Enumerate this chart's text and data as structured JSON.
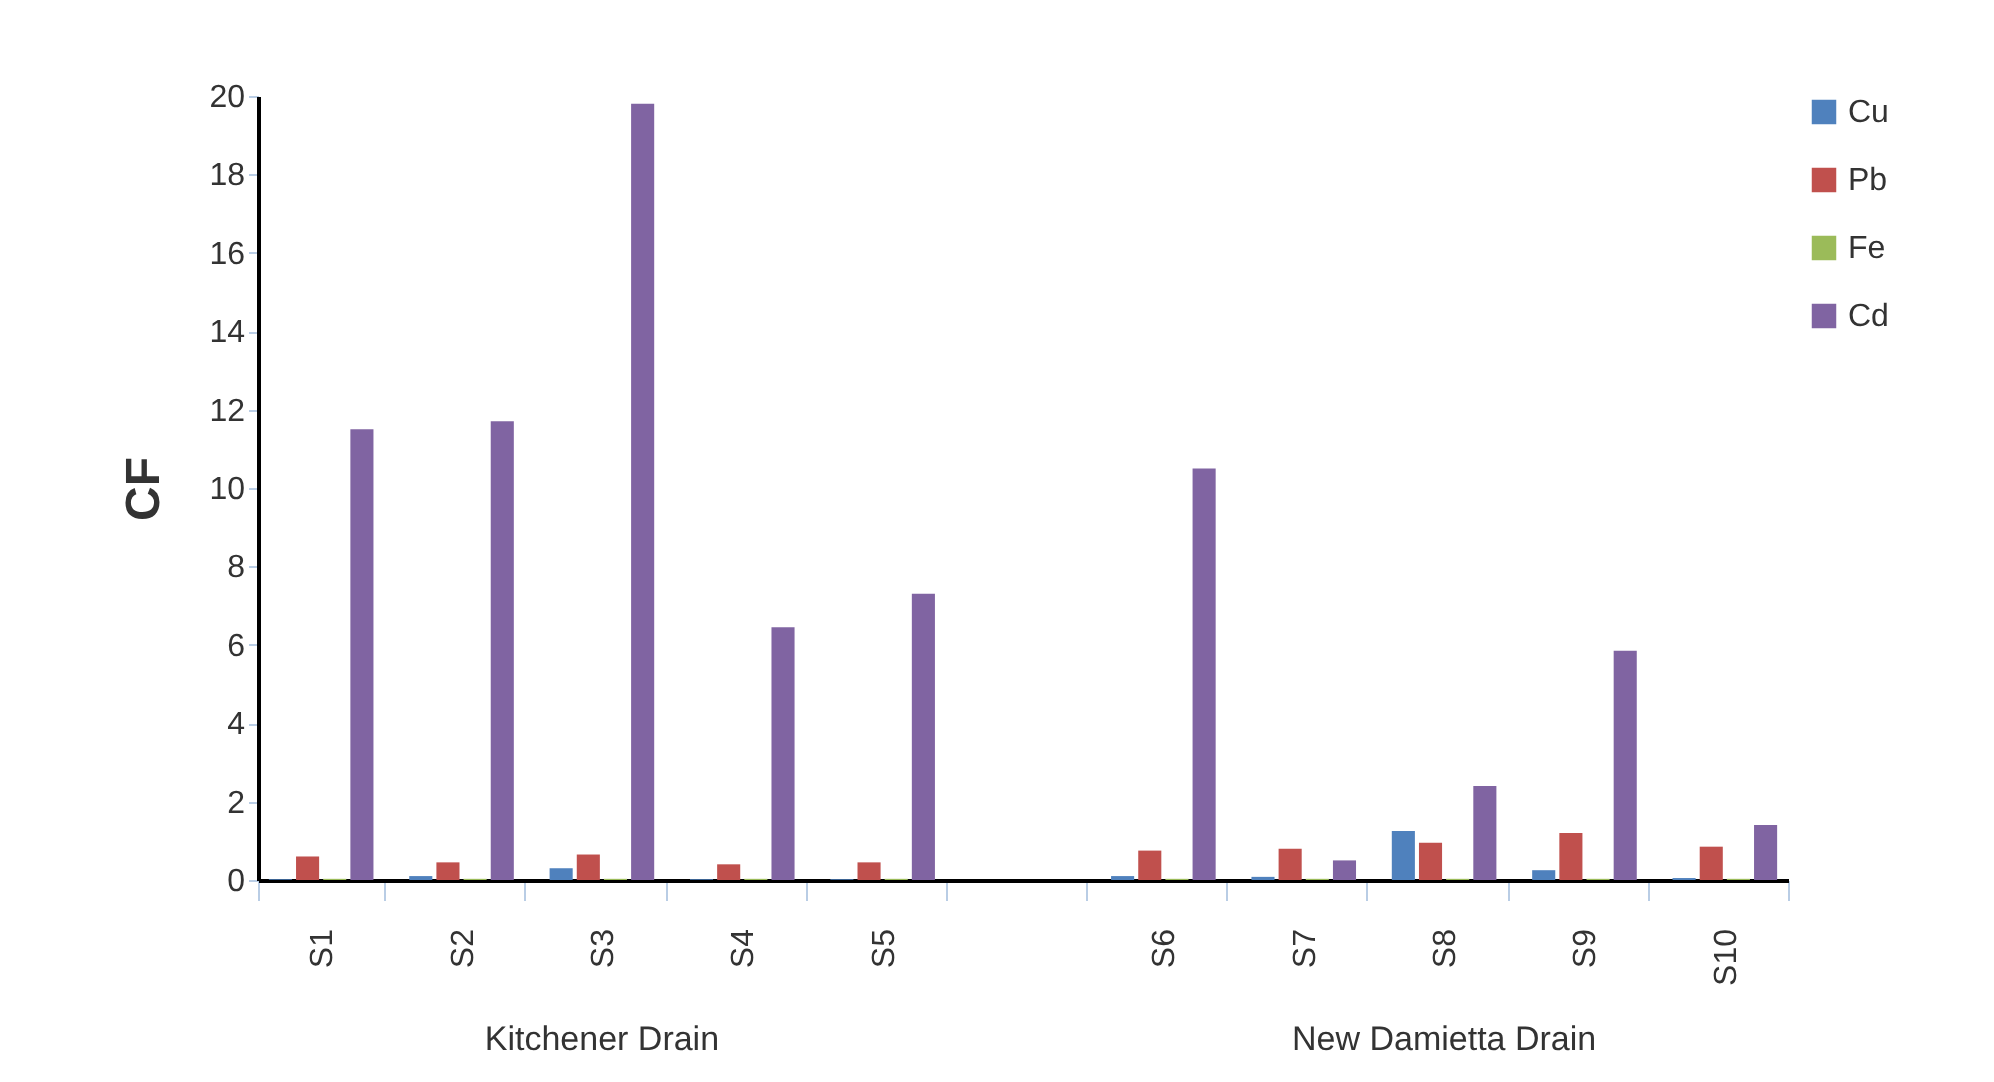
{
  "chart_data": {
    "type": "bar",
    "ylabel": "CF",
    "categories": [
      "S1",
      "S2",
      "S3",
      "S4",
      "S5",
      null,
      "S6",
      "S7",
      "S8",
      "S9",
      "S10"
    ],
    "series": [
      {
        "name": "Cu",
        "color": "#4f81bd",
        "values": [
          0.02,
          0.1,
          0.3,
          0.02,
          0.02,
          null,
          0.1,
          0.08,
          1.25,
          0.25,
          0.05
        ]
      },
      {
        "name": "Pb",
        "color": "#c0504d",
        "values": [
          0.6,
          0.45,
          0.65,
          0.4,
          0.45,
          null,
          0.75,
          0.8,
          0.95,
          1.2,
          0.85
        ]
      },
      {
        "name": "Fe",
        "color": "#9bbb59",
        "values": [
          0.03,
          0.03,
          0.03,
          0.03,
          0.03,
          null,
          0.03,
          0.03,
          0.03,
          0.03,
          0.03
        ]
      },
      {
        "name": "Cd",
        "color": "#8064a2",
        "values": [
          11.5,
          11.7,
          19.8,
          6.45,
          7.3,
          null,
          10.5,
          0.5,
          2.4,
          5.85,
          1.4
        ]
      }
    ],
    "annotations": [
      "Kitchener Drain",
      "New Damietta Drain"
    ],
    "ylim": [
      0,
      20
    ],
    "yticks": [
      0,
      2,
      4,
      6,
      8,
      10,
      12,
      14,
      16,
      18,
      20
    ],
    "grid": false,
    "legend": "right"
  }
}
